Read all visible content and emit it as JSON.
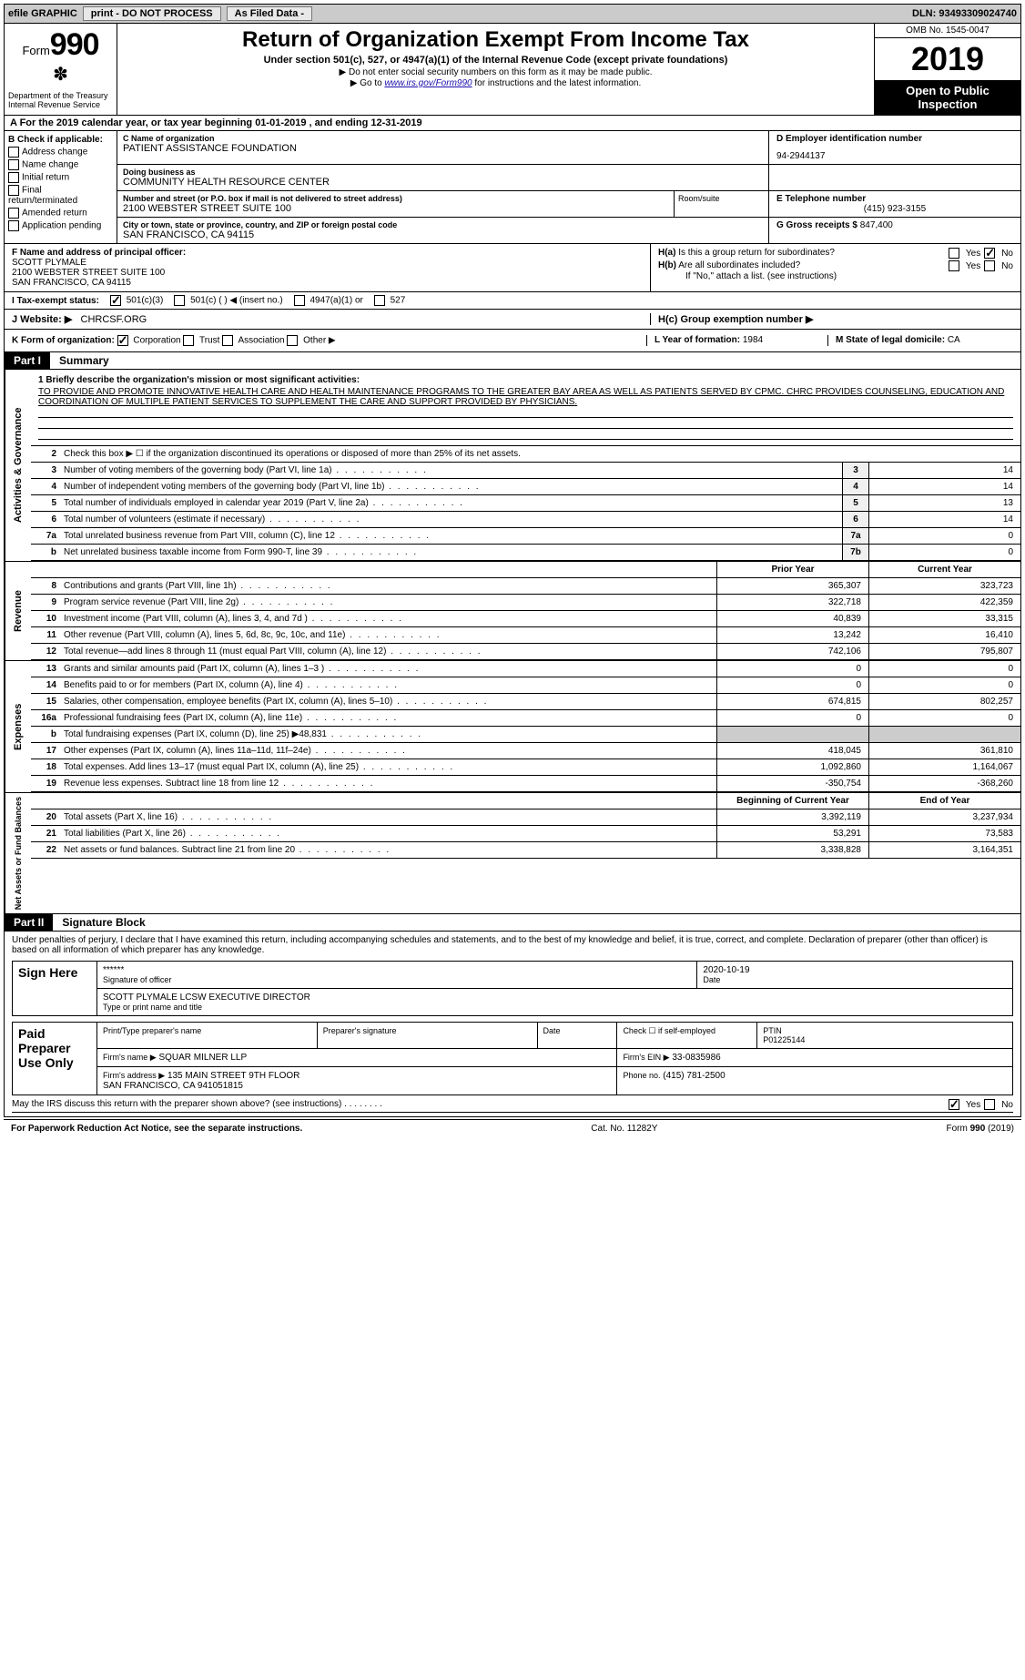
{
  "topbar": {
    "efile_label": "efile GRAPHIC",
    "print_btn": "print - DO NOT PROCESS",
    "as_filed": "As Filed Data -",
    "dln_label": "DLN:",
    "dln": "93493309024740"
  },
  "header": {
    "form_word": "Form",
    "form_no": "990",
    "dept": "Department of the Treasury\nInternal Revenue Service",
    "title": "Return of Organization Exempt From Income Tax",
    "sub1": "Under section 501(c), 527, or 4947(a)(1) of the Internal Revenue Code (except private foundations)",
    "sub2": "▶ Do not enter social security numbers on this form as it may be made public.",
    "sub3_pre": "▶ Go to ",
    "sub3_link": "www.irs.gov/Form990",
    "sub3_post": " for instructions and the latest information.",
    "omb": "OMB No. 1545-0047",
    "year": "2019",
    "open_pub": "Open to Public Inspection"
  },
  "row_a": {
    "text": "A  For the 2019 calendar year, or tax year beginning 01-01-2019   , and ending 12-31-2019"
  },
  "col_b": {
    "hd": "B Check if applicable:",
    "opts": [
      "Address change",
      "Name change",
      "Initial return",
      "Final return/terminated",
      "Amended return",
      "Application pending"
    ]
  },
  "entity": {
    "c_name_hd": "C Name of organization",
    "c_name": "PATIENT ASSISTANCE FOUNDATION",
    "dba_hd": "Doing business as",
    "dba": "COMMUNITY HEALTH RESOURCE CENTER",
    "street_hd": "Number and street (or P.O. box if mail is not delivered to street address)",
    "street": "2100 WEBSTER STREET SUITE 100",
    "room_hd": "Room/suite",
    "city_hd": "City or town, state or province, country, and ZIP or foreign postal code",
    "city": "SAN FRANCISCO, CA  94115",
    "d_hd": "D Employer identification number",
    "d_val": "94-2944137",
    "e_hd": "E Telephone number",
    "e_val": "(415) 923-3155",
    "g_hd": "G Gross receipts $",
    "g_val": "847,400"
  },
  "f": {
    "hd": "F  Name and address of principal officer:",
    "name": "SCOTT PLYMALE",
    "addr1": "2100 WEBSTER STREET SUITE 100",
    "addr2": "SAN FRANCISCO, CA  94115"
  },
  "h": {
    "a_q": "H(a)  Is this a group return for subordinates?",
    "b_q": "H(b)  Are all subordinates included?",
    "b_note": "If \"No,\" attach a list. (see instructions)",
    "c_q": "H(c)  Group exemption number ▶",
    "yes": "Yes",
    "no": "No"
  },
  "i": {
    "hd": "I  Tax-exempt status:",
    "o1": "501(c)(3)",
    "o2": "501(c) (   ) ◀ (insert no.)",
    "o3": "4947(a)(1) or",
    "o4": "527"
  },
  "j": {
    "hd": "J  Website: ▶",
    "val": "CHRCSF.ORG"
  },
  "k": {
    "hd": "K Form of organization:",
    "opts": [
      "Corporation",
      "Trust",
      "Association",
      "Other ▶"
    ]
  },
  "l": {
    "hd": "L Year of formation:",
    "val": "1984"
  },
  "m": {
    "hd": "M State of legal domicile:",
    "val": "CA"
  },
  "part1": {
    "tag": "Part I",
    "title": "Summary"
  },
  "mission": {
    "lead": "1  Briefly describe the organization's mission or most significant activities:",
    "text": "TO PROVIDE AND PROMOTE INNOVATIVE HEALTH CARE AND HEALTH MAINTENANCE PROGRAMS TO THE GREATER BAY AREA AS WELL AS PATIENTS SERVED BY CPMC. CHRC PROVIDES COUNSELING, EDUCATION AND COORDINATION OF MULTIPLE PATIENT SERVICES TO SUPPLEMENT THE CARE AND SUPPORT PROVIDED BY PHYSICIANS."
  },
  "line2": "Check this box ▶ ☐ if the organization discontinued its operations or disposed of more than 25% of its net assets.",
  "gov_lines": [
    {
      "n": "3",
      "d": "Number of voting members of the governing body (Part VI, line 1a)",
      "box": "3",
      "v": "14"
    },
    {
      "n": "4",
      "d": "Number of independent voting members of the governing body (Part VI, line 1b)",
      "box": "4",
      "v": "14"
    },
    {
      "n": "5",
      "d": "Total number of individuals employed in calendar year 2019 (Part V, line 2a)",
      "box": "5",
      "v": "13"
    },
    {
      "n": "6",
      "d": "Total number of volunteers (estimate if necessary)",
      "box": "6",
      "v": "14"
    },
    {
      "n": "7a",
      "d": "Total unrelated business revenue from Part VIII, column (C), line 12",
      "box": "7a",
      "v": "0"
    },
    {
      "n": "b",
      "d": "Net unrelated business taxable income from Form 990-T, line 39",
      "box": "7b",
      "v": "0"
    }
  ],
  "cols_hd": {
    "c1": "Prior Year",
    "c2": "Current Year"
  },
  "rev_lines": [
    {
      "n": "8",
      "d": "Contributions and grants (Part VIII, line 1h)",
      "v1": "365,307",
      "v2": "323,723"
    },
    {
      "n": "9",
      "d": "Program service revenue (Part VIII, line 2g)",
      "v1": "322,718",
      "v2": "422,359"
    },
    {
      "n": "10",
      "d": "Investment income (Part VIII, column (A), lines 3, 4, and 7d )",
      "v1": "40,839",
      "v2": "33,315"
    },
    {
      "n": "11",
      "d": "Other revenue (Part VIII, column (A), lines 5, 6d, 8c, 9c, 10c, and 11e)",
      "v1": "13,242",
      "v2": "16,410"
    },
    {
      "n": "12",
      "d": "Total revenue—add lines 8 through 11 (must equal Part VIII, column (A), line 12)",
      "v1": "742,106",
      "v2": "795,807"
    }
  ],
  "exp_lines": [
    {
      "n": "13",
      "d": "Grants and similar amounts paid (Part IX, column (A), lines 1–3 )",
      "v1": "0",
      "v2": "0"
    },
    {
      "n": "14",
      "d": "Benefits paid to or for members (Part IX, column (A), line 4)",
      "v1": "0",
      "v2": "0"
    },
    {
      "n": "15",
      "d": "Salaries, other compensation, employee benefits (Part IX, column (A), lines 5–10)",
      "v1": "674,815",
      "v2": "802,257"
    },
    {
      "n": "16a",
      "d": "Professional fundraising fees (Part IX, column (A), line 11e)",
      "v1": "0",
      "v2": "0"
    },
    {
      "n": "b",
      "d": "Total fundraising expenses (Part IX, column (D), line 25) ▶48,831",
      "v1": "",
      "v2": ""
    },
    {
      "n": "17",
      "d": "Other expenses (Part IX, column (A), lines 11a–11d, 11f–24e)",
      "v1": "418,045",
      "v2": "361,810"
    },
    {
      "n": "18",
      "d": "Total expenses. Add lines 13–17 (must equal Part IX, column (A), line 25)",
      "v1": "1,092,860",
      "v2": "1,164,067"
    },
    {
      "n": "19",
      "d": "Revenue less expenses. Subtract line 18 from line 12",
      "v1": "-350,754",
      "v2": "-368,260"
    }
  ],
  "na_hd": {
    "c1": "Beginning of Current Year",
    "c2": "End of Year"
  },
  "na_lines": [
    {
      "n": "20",
      "d": "Total assets (Part X, line 16)",
      "v1": "3,392,119",
      "v2": "3,237,934"
    },
    {
      "n": "21",
      "d": "Total liabilities (Part X, line 26)",
      "v1": "53,291",
      "v2": "73,583"
    },
    {
      "n": "22",
      "d": "Net assets or fund balances. Subtract line 21 from line 20",
      "v1": "3,338,828",
      "v2": "3,164,351"
    }
  ],
  "vtabs": {
    "gov": "Activities & Governance",
    "rev": "Revenue",
    "exp": "Expenses",
    "na": "Net Assets or Fund Balances"
  },
  "part2": {
    "tag": "Part II",
    "title": "Signature Block"
  },
  "decl": "Under penalties of perjury, I declare that I have examined this return, including accompanying schedules and statements, and to the best of my knowledge and belief, it is true, correct, and complete. Declaration of preparer (other than officer) is based on all information of which preparer has any knowledge.",
  "sign": {
    "here": "Sign Here",
    "stars": "******",
    "sig_of_officer": "Signature of officer",
    "date": "2020-10-19",
    "date_lbl": "Date",
    "name_title": "SCOTT PLYMALE LCSW  EXECUTIVE DIRECTOR",
    "name_title_lbl": "Type or print name and title"
  },
  "paid": {
    "hd": "Paid Preparer Use Only",
    "prep_name_lbl": "Print/Type preparer's name",
    "prep_sig_lbl": "Preparer's signature",
    "date_lbl": "Date",
    "check_lbl": "Check ☐ if self-employed",
    "ptin_lbl": "PTIN",
    "ptin": "P01225144",
    "firm_name_lbl": "Firm's name   ▶",
    "firm_name": "SQUAR MILNER LLP",
    "firm_ein_lbl": "Firm's EIN ▶",
    "firm_ein": "33-0835986",
    "firm_addr_lbl": "Firm's address ▶",
    "firm_addr": "135 MAIN STREET 9TH FLOOR\nSAN FRANCISCO, CA  941051815",
    "phone_lbl": "Phone no.",
    "phone": "(415) 781-2500"
  },
  "discuss": "May the IRS discuss this return with the preparer shown above? (see instructions)",
  "footer": {
    "left": "For Paperwork Reduction Act Notice, see the separate instructions.",
    "mid": "Cat. No. 11282Y",
    "right_pre": "Form ",
    "right_no": "990",
    "right_post": " (2019)"
  }
}
